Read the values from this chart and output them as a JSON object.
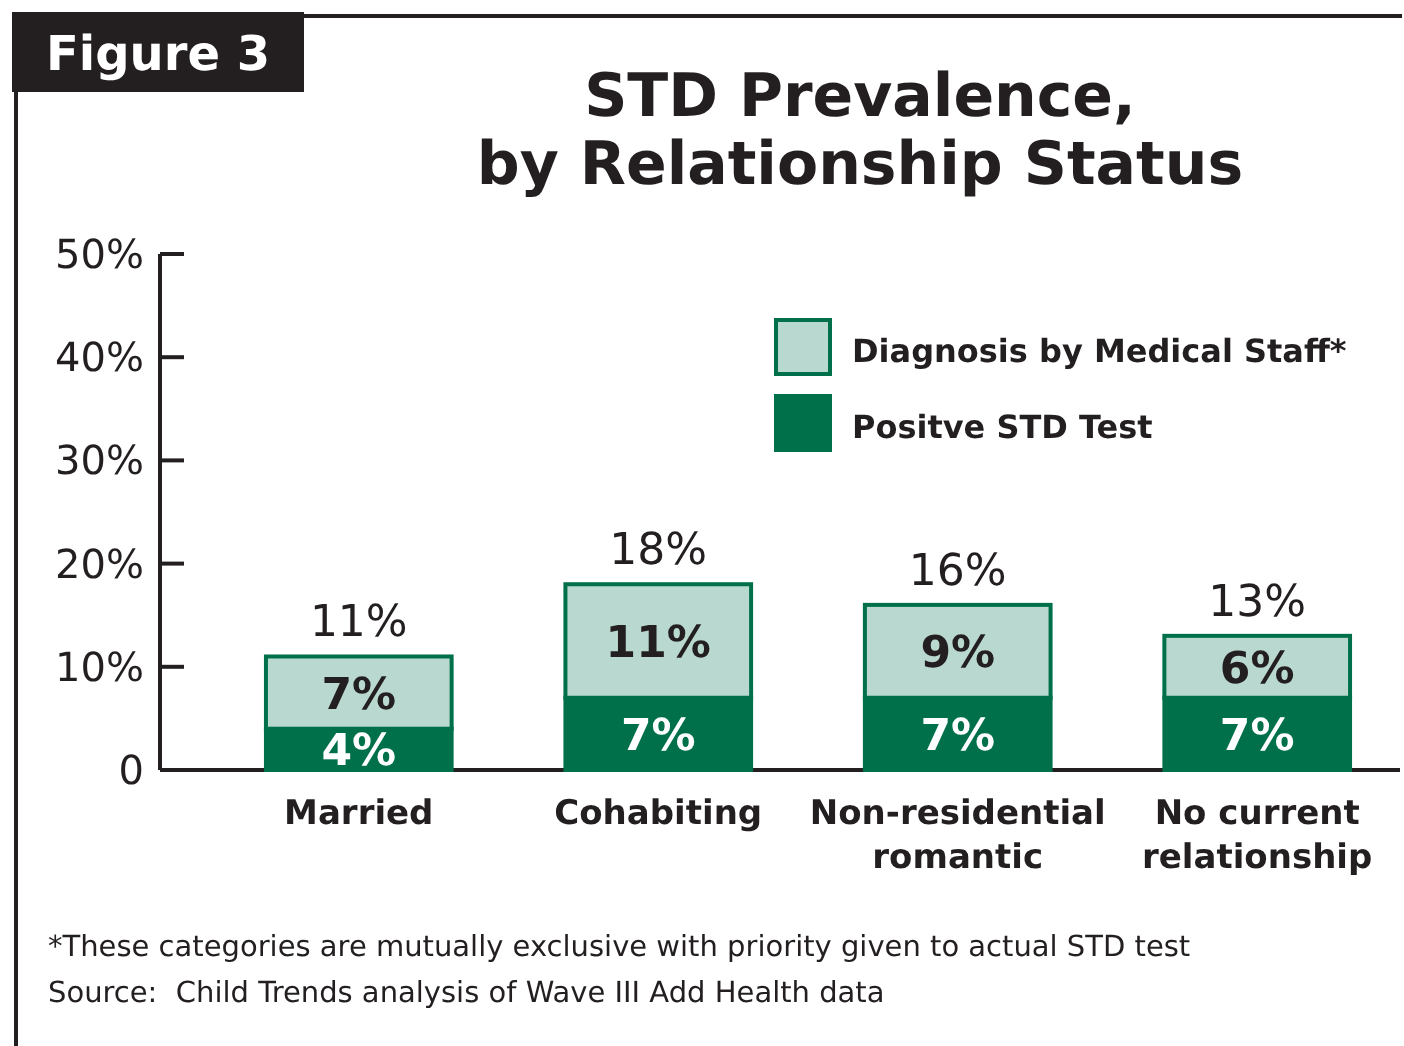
{
  "chart_data": {
    "type": "bar",
    "stacked": true,
    "title": "STD Prevalence, by Relationship Status",
    "categories": [
      "Married",
      "Cohabiting",
      "Non-residential romantic",
      "No current relationship"
    ],
    "series": [
      {
        "name": "Positve STD Test",
        "color": "#00704a",
        "values": [
          4,
          7,
          7,
          7
        ],
        "value_labels": [
          "4%",
          "7%",
          "7%",
          "7%"
        ]
      },
      {
        "name": "Diagnosis by Medical Staff*",
        "color": "#b9d8cf",
        "values": [
          7,
          11,
          9,
          6
        ],
        "value_labels": [
          "7%",
          "11%",
          "9%",
          "6%"
        ]
      }
    ],
    "totals": [
      "11%",
      "18%",
      "16%",
      "13%"
    ],
    "ylim": [
      0,
      50
    ],
    "yticks": [
      0,
      {
        "value": 10,
        "label": "10%"
      },
      {
        "value": 20,
        "label": "20%"
      },
      {
        "value": 30,
        "label": "30%"
      },
      {
        "value": 40,
        "label": "40%"
      },
      {
        "value": 50,
        "label": "50%"
      }
    ],
    "legend": "top right",
    "annotations": [
      "Figure 3",
      "*These categories are mutually exclusive with priority given to actual STD test",
      "Source:  Child Trends analysis of Wave III Add Health data"
    ]
  }
}
